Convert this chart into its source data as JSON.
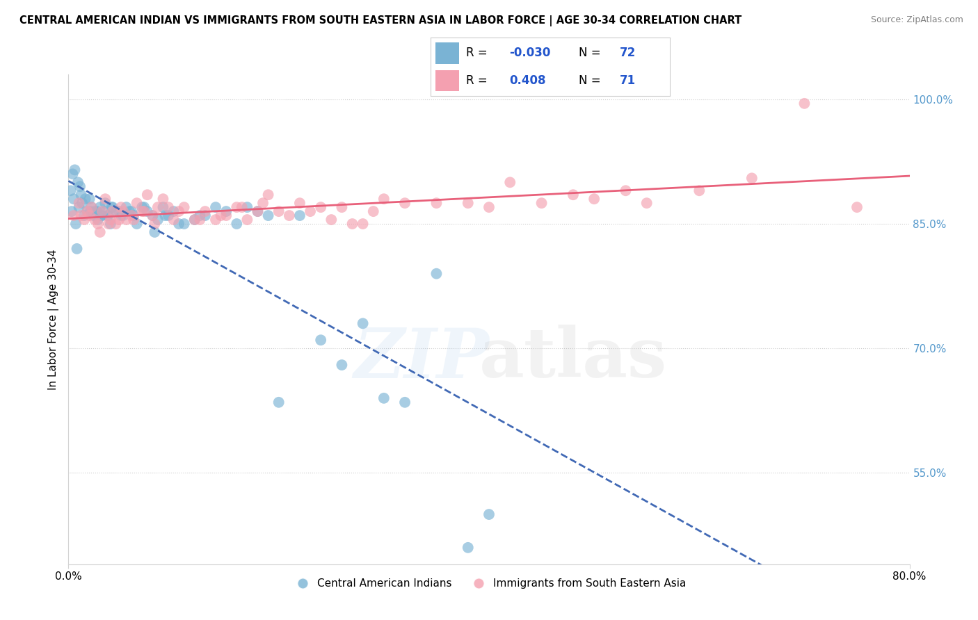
{
  "title": "CENTRAL AMERICAN INDIAN VS IMMIGRANTS FROM SOUTH EASTERN ASIA IN LABOR FORCE | AGE 30-34 CORRELATION CHART",
  "source": "Source: ZipAtlas.com",
  "ylabel": "In Labor Force | Age 30-34",
  "legend_label_blue": "Central American Indians",
  "legend_label_pink": "Immigrants from South Eastern Asia",
  "blue_R": -0.03,
  "blue_N": 72,
  "pink_R": 0.408,
  "pink_N": 71,
  "blue_color": "#7ab3d4",
  "pink_color": "#f4a0b0",
  "blue_line_color": "#4169b5",
  "pink_line_color": "#e8607a",
  "x_range": [
    0.0,
    80.0
  ],
  "y_range": [
    44.0,
    103.0
  ],
  "y_ticks": [
    55.0,
    70.0,
    85.0,
    100.0
  ],
  "y_tick_labels": [
    "55.0%",
    "70.0%",
    "85.0%",
    "100.0%"
  ],
  "blue_x": [
    0.3,
    0.5,
    0.7,
    0.8,
    1.0,
    1.2,
    1.5,
    1.8,
    2.0,
    2.2,
    2.5,
    2.8,
    3.0,
    3.2,
    3.5,
    3.8,
    4.0,
    4.2,
    4.5,
    5.0,
    5.5,
    6.0,
    6.5,
    7.0,
    7.5,
    8.0,
    8.5,
    9.0,
    9.5,
    10.0,
    11.0,
    12.0,
    13.0,
    14.0,
    15.0,
    16.0,
    17.0,
    18.0,
    19.0,
    20.0,
    22.0,
    24.0,
    26.0,
    28.0,
    30.0,
    32.0,
    35.0,
    0.2,
    0.4,
    0.6,
    0.9,
    1.1,
    1.3,
    1.6,
    2.1,
    2.4,
    2.7,
    3.1,
    3.4,
    3.7,
    4.1,
    4.8,
    5.2,
    5.8,
    6.2,
    7.2,
    8.2,
    9.2,
    10.5,
    12.5,
    40.0,
    38.0
  ],
  "blue_y": [
    86.5,
    88.0,
    85.0,
    82.0,
    87.0,
    88.5,
    86.0,
    86.5,
    88.0,
    87.0,
    86.5,
    85.5,
    87.0,
    86.0,
    87.5,
    86.0,
    85.0,
    87.0,
    86.5,
    86.0,
    87.0,
    86.5,
    85.0,
    87.0,
    86.5,
    86.0,
    85.5,
    87.0,
    86.0,
    86.5,
    85.0,
    85.5,
    86.0,
    87.0,
    86.5,
    85.0,
    87.0,
    86.5,
    86.0,
    63.5,
    86.0,
    71.0,
    68.0,
    73.0,
    64.0,
    63.5,
    79.0,
    89.0,
    91.0,
    91.5,
    90.0,
    89.5,
    87.5,
    88.0,
    86.5,
    86.0,
    86.5,
    86.0,
    86.5,
    86.0,
    87.0,
    86.5,
    86.0,
    86.5,
    86.0,
    87.0,
    84.0,
    86.0,
    85.0,
    86.0,
    50.0,
    46.0
  ],
  "pink_x": [
    0.5,
    1.0,
    1.5,
    2.0,
    2.5,
    3.0,
    3.5,
    4.0,
    4.5,
    5.0,
    5.5,
    6.0,
    6.5,
    7.0,
    7.5,
    8.0,
    8.5,
    9.0,
    10.0,
    11.0,
    12.0,
    13.0,
    14.0,
    15.0,
    16.0,
    17.0,
    18.0,
    19.0,
    20.0,
    22.0,
    24.0,
    26.0,
    28.0,
    30.0,
    35.0,
    40.0,
    45.0,
    50.0,
    55.0,
    60.0,
    70.0,
    1.2,
    1.8,
    2.2,
    2.8,
    3.2,
    3.8,
    4.2,
    4.8,
    5.2,
    6.2,
    7.2,
    8.2,
    9.5,
    10.5,
    12.5,
    14.5,
    16.5,
    18.5,
    21.0,
    23.0,
    25.0,
    27.0,
    29.0,
    32.0,
    38.0,
    42.0,
    48.0,
    53.0,
    65.0,
    75.0
  ],
  "pink_y": [
    86.0,
    87.5,
    85.5,
    86.0,
    85.5,
    84.0,
    88.0,
    85.5,
    85.0,
    87.0,
    85.5,
    86.0,
    87.5,
    86.5,
    88.5,
    86.0,
    87.0,
    88.0,
    85.5,
    87.0,
    85.5,
    86.5,
    85.5,
    86.0,
    87.0,
    85.5,
    86.5,
    88.5,
    86.5,
    87.5,
    87.0,
    87.0,
    85.0,
    88.0,
    87.5,
    87.0,
    87.5,
    88.0,
    87.5,
    89.0,
    99.5,
    86.0,
    86.5,
    87.0,
    85.0,
    86.5,
    85.0,
    86.5,
    85.5,
    86.5,
    85.5,
    86.5,
    85.0,
    87.0,
    86.5,
    85.5,
    86.0,
    87.0,
    87.5,
    86.0,
    86.5,
    85.5,
    85.0,
    86.5,
    87.5,
    87.5,
    90.0,
    88.5,
    89.0,
    90.5,
    87.0
  ]
}
